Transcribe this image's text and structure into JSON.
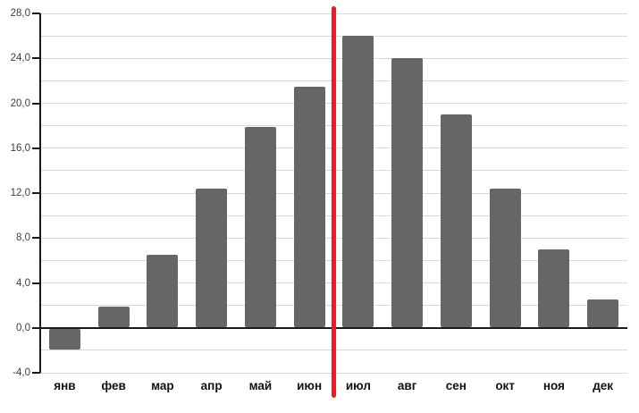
{
  "chart_data": {
    "type": "bar",
    "title": "",
    "xlabel": "",
    "ylabel": "",
    "categories": [
      "янв",
      "фев",
      "мар",
      "апр",
      "май",
      "июн",
      "июл",
      "авг",
      "сен",
      "окт",
      "ноя",
      "дек"
    ],
    "values": [
      -1.9,
      1.9,
      6.5,
      12.4,
      17.9,
      21.5,
      26.0,
      24.0,
      19.0,
      12.4,
      7.0,
      2.5
    ],
    "ylim": [
      -4,
      28
    ],
    "y_major_step": 4,
    "y_minor_step": 2,
    "y_tick_labels": [
      "28,0",
      "24,0",
      "20,0",
      "16,0",
      "12,0",
      "8,0",
      "4,0",
      "0,0",
      "-4,0"
    ],
    "decimal_separator": ",",
    "grid": true,
    "legend_position": "none",
    "colors": {
      "bar": "#666666",
      "annotation_line": "#ED1C24",
      "axis": "#1a1a1a",
      "gridline": "#d9d9d9",
      "y_label_text": "#3f3f3f",
      "x_label_text": "#111111",
      "background": "#ffffff"
    },
    "annotation": {
      "type": "vertical-line",
      "between": [
        "июн",
        "июл"
      ],
      "color": "#ED1C24"
    }
  }
}
